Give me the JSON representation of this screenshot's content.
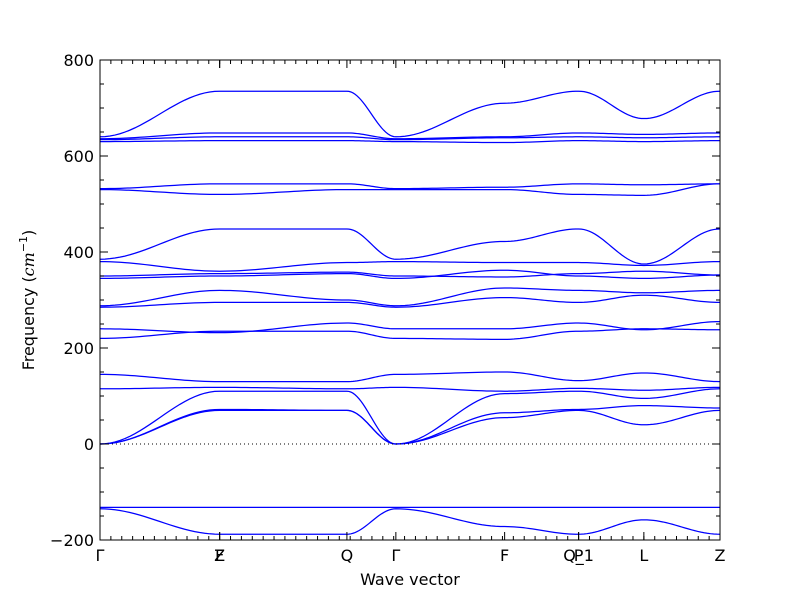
{
  "chart_data": {
    "type": "line",
    "title": "",
    "xlabel": "Wave vector",
    "ylabel": "Frequency ($cm^{-1}$)",
    "ylabel_parts": {
      "word": "Frequency (",
      "unit": "cm",
      "exponent": "−1",
      "close": ")"
    },
    "ylim": [
      -200,
      800
    ],
    "yticks": [
      -200,
      0,
      200,
      400,
      600,
      800
    ],
    "xlim": [
      0,
      5.7
    ],
    "grid": false,
    "zero_line": true,
    "line_color": "#0000ff",
    "high_symmetry_points": [
      {
        "label": "Γ",
        "x": 0.0
      },
      {
        "label": "F",
        "x": 1.1
      },
      {
        "label": "Z",
        "x": 1.1
      },
      {
        "label": "Q",
        "x": 2.27
      },
      {
        "label": "Γ",
        "x": 2.72
      },
      {
        "label": "F",
        "x": 3.72
      },
      {
        "label": "P",
        "x": 4.4
      },
      {
        "label": "Q_1",
        "x": 4.4
      },
      {
        "label": "L",
        "x": 5.0
      },
      {
        "label": "Z",
        "x": 5.7
      }
    ],
    "series": [
      {
        "x": [
          0,
          1.1,
          2.27,
          2.72,
          3.72,
          4.4,
          5.0,
          5.7
        ],
        "values": [
          -135,
          -188,
          -188,
          -135,
          -172,
          -188,
          -158,
          -188
        ]
      },
      {
        "x": [
          0,
          1.1,
          2.27,
          2.72,
          3.72,
          4.4,
          5.0,
          5.7
        ],
        "values": [
          -132,
          -132,
          -132,
          -132,
          -132,
          -132,
          -132,
          -132
        ]
      },
      {
        "x": [
          0,
          1.1,
          2.27,
          2.72,
          3.72,
          4.4,
          5.0,
          5.7
        ],
        "values": [
          0,
          70,
          70,
          0,
          55,
          70,
          40,
          70
        ]
      },
      {
        "x": [
          0,
          1.1,
          2.27,
          2.72,
          3.72,
          4.4,
          5.0,
          5.7
        ],
        "values": [
          0,
          72,
          70,
          0,
          65,
          72,
          80,
          75
        ]
      },
      {
        "x": [
          0,
          1.1,
          2.27,
          2.72,
          3.72,
          4.4,
          5.0,
          5.7
        ],
        "values": [
          0,
          110,
          110,
          0,
          105,
          110,
          95,
          115
        ]
      },
      {
        "x": [
          0,
          1.1,
          2.27,
          2.72,
          3.72,
          4.4,
          5.0,
          5.7
        ],
        "values": [
          115,
          118,
          115,
          118,
          110,
          116,
          112,
          118
        ]
      },
      {
        "x": [
          0,
          1.1,
          2.27,
          2.72,
          3.72,
          4.4,
          5.0,
          5.7
        ],
        "values": [
          145,
          130,
          130,
          145,
          150,
          132,
          148,
          130
        ]
      },
      {
        "x": [
          0,
          1.1,
          2.27,
          2.72,
          3.72,
          4.4,
          5.0,
          5.7
        ],
        "values": [
          220,
          235,
          235,
          220,
          218,
          235,
          240,
          238
        ]
      },
      {
        "x": [
          0,
          1.1,
          2.27,
          2.72,
          3.72,
          4.4,
          5.0,
          5.7
        ],
        "values": [
          240,
          232,
          252,
          240,
          240,
          252,
          238,
          255
        ]
      },
      {
        "x": [
          0,
          1.1,
          2.27,
          2.72,
          3.72,
          4.4,
          5.0,
          5.7
        ],
        "values": [
          285,
          295,
          295,
          285,
          305,
          295,
          310,
          295
        ]
      },
      {
        "x": [
          0,
          1.1,
          2.27,
          2.72,
          3.72,
          4.4,
          5.0,
          5.7
        ],
        "values": [
          288,
          320,
          300,
          288,
          325,
          320,
          315,
          320
        ]
      },
      {
        "x": [
          0,
          1.1,
          2.27,
          2.72,
          3.72,
          4.4,
          5.0,
          5.7
        ],
        "values": [
          345,
          350,
          355,
          345,
          362,
          350,
          345,
          352
        ]
      },
      {
        "x": [
          0,
          1.1,
          2.27,
          2.72,
          3.72,
          4.4,
          5.0,
          5.7
        ],
        "values": [
          350,
          355,
          358,
          350,
          348,
          355,
          360,
          352
        ]
      },
      {
        "x": [
          0,
          1.1,
          2.27,
          2.72,
          3.72,
          4.4,
          5.0,
          5.7
        ],
        "values": [
          380,
          360,
          378,
          380,
          378,
          378,
          372,
          380
        ]
      },
      {
        "x": [
          0,
          1.1,
          2.27,
          2.72,
          3.72,
          4.4,
          5.0,
          5.7
        ],
        "values": [
          385,
          448,
          448,
          385,
          422,
          448,
          375,
          448
        ]
      },
      {
        "x": [
          0,
          1.1,
          2.27,
          2.72,
          3.72,
          4.4,
          5.0,
          5.7
        ],
        "values": [
          530,
          520,
          530,
          530,
          530,
          520,
          518,
          542
        ]
      },
      {
        "x": [
          0,
          1.1,
          2.27,
          2.72,
          3.72,
          4.4,
          5.0,
          5.7
        ],
        "values": [
          532,
          542,
          542,
          532,
          535,
          542,
          540,
          542
        ]
      },
      {
        "x": [
          0,
          1.1,
          2.27,
          2.72,
          3.72,
          4.4,
          5.0,
          5.7
        ],
        "values": [
          630,
          632,
          632,
          630,
          628,
          632,
          630,
          632
        ]
      },
      {
        "x": [
          0,
          1.1,
          2.27,
          2.72,
          3.72,
          4.4,
          5.0,
          5.7
        ],
        "values": [
          634,
          640,
          640,
          634,
          638,
          640,
          638,
          640
        ]
      },
      {
        "x": [
          0,
          1.1,
          2.27,
          2.72,
          3.72,
          4.4,
          5.0,
          5.7
        ],
        "values": [
          636,
          648,
          648,
          636,
          640,
          648,
          645,
          648
        ]
      },
      {
        "x": [
          0,
          1.1,
          2.27,
          2.72,
          3.72,
          4.4,
          5.0,
          5.7
        ],
        "values": [
          640,
          735,
          735,
          640,
          710,
          735,
          678,
          735
        ]
      }
    ]
  }
}
